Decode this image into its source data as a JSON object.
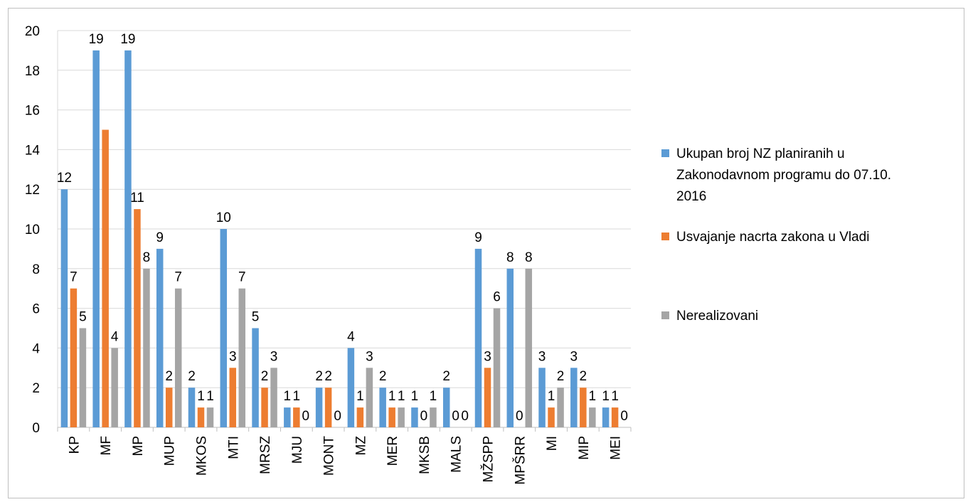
{
  "chart_data": {
    "type": "bar",
    "title": "",
    "xlabel": "",
    "ylabel": "",
    "ylim": [
      0,
      20
    ],
    "yticks": [
      0,
      2,
      4,
      6,
      8,
      10,
      12,
      14,
      16,
      18,
      20
    ],
    "grid": "horizontal",
    "legend_position": "right",
    "categories": [
      "KP",
      "MF",
      "MP",
      "MUP",
      "MKOS",
      "MTI",
      "MRSZ",
      "MJU",
      "MONT",
      "MZ",
      "MER",
      "MKSB",
      "MALS",
      "MŽSPP",
      "MPŠRR",
      "MI",
      "MIP",
      "MEI"
    ],
    "series": [
      {
        "name": "Ukupan broj NZ planiranih u Zakonodavnom programu do 07.10. 2016",
        "legend_lines": [
          "Ukupan broj NZ planiranih u",
          "Zakonodavnom programu do 07.10.",
          "2016"
        ],
        "color": "#5b9bd5",
        "values": [
          12,
          19,
          19,
          9,
          2,
          10,
          5,
          1,
          2,
          4,
          2,
          1,
          2,
          9,
          8,
          3,
          3,
          1
        ],
        "labels": [
          12,
          19,
          19,
          9,
          2,
          10,
          5,
          1,
          2,
          4,
          2,
          1,
          2,
          9,
          8,
          3,
          3,
          1
        ]
      },
      {
        "name": "Usvajanje nacrta zakona u Vladi",
        "legend_lines": [
          "Usvajanje nacrta zakona u Vladi"
        ],
        "color": "#ed7d31",
        "values": [
          7,
          15,
          11,
          2,
          1,
          3,
          2,
          1,
          2,
          1,
          1,
          0,
          0,
          3,
          0,
          1,
          2,
          1
        ],
        "labels": [
          7,
          null,
          11,
          2,
          1,
          3,
          2,
          1,
          2,
          1,
          1,
          0,
          0,
          3,
          0,
          1,
          2,
          1
        ]
      },
      {
        "name": "Nerealizovani",
        "legend_lines": [
          "Nerealizovani"
        ],
        "color": "#a5a5a5",
        "values": [
          5,
          4,
          8,
          7,
          1,
          7,
          3,
          0,
          0,
          3,
          1,
          1,
          0,
          6,
          8,
          2,
          1,
          0
        ],
        "labels": [
          5,
          4,
          8,
          7,
          1,
          7,
          3,
          0,
          0,
          3,
          1,
          1,
          0,
          6,
          8,
          2,
          1,
          0
        ]
      }
    ]
  }
}
